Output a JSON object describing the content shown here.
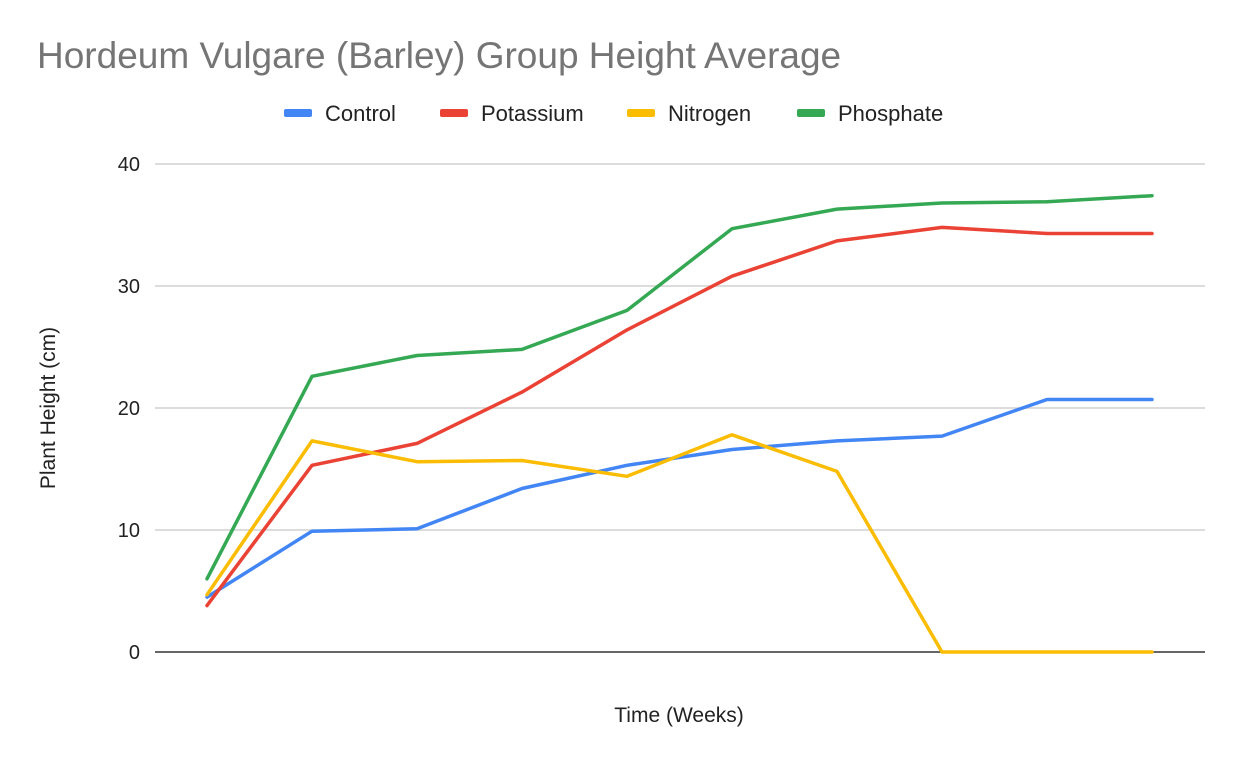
{
  "chart_data": {
    "type": "line",
    "title": "Hordeum Vulgare (Barley) Group Height Average",
    "xlabel": "Time (Weeks)",
    "ylabel": "Plant Height (cm)",
    "ylim": [
      0,
      40
    ],
    "yticks": [
      "0",
      "10",
      "20",
      "30",
      "40"
    ],
    "grid": true,
    "legend_position": "top",
    "x": [
      1,
      2,
      3,
      4,
      5,
      6,
      7,
      8,
      9,
      10
    ],
    "series": [
      {
        "name": "Control",
        "color": "#4285f4",
        "values": [
          4.5,
          9.9,
          10.1,
          13.4,
          15.3,
          16.6,
          17.3,
          17.7,
          20.7,
          20.7
        ]
      },
      {
        "name": "Potassium",
        "color": "#ea4335",
        "values": [
          3.8,
          15.3,
          17.1,
          21.3,
          26.4,
          30.8,
          33.7,
          34.8,
          34.3,
          34.3
        ]
      },
      {
        "name": "Nitrogen",
        "color": "#fbbc04",
        "values": [
          4.7,
          17.3,
          15.6,
          15.7,
          14.4,
          17.8,
          14.8,
          0,
          0,
          0
        ]
      },
      {
        "name": "Phosphate",
        "color": "#34a853",
        "values": [
          6.0,
          22.6,
          24.3,
          24.8,
          28.0,
          34.7,
          36.3,
          36.8,
          36.9,
          37.4
        ]
      }
    ]
  }
}
